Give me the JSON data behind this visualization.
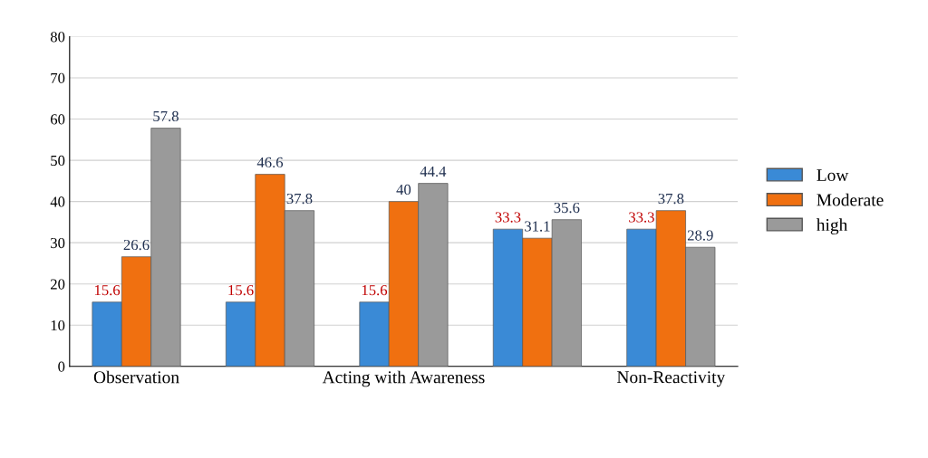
{
  "chart_data": {
    "type": "bar",
    "categories": [
      "Observation",
      null,
      "Acting with Awareness",
      null,
      "Non-Reactivity"
    ],
    "series": [
      {
        "name": "Low",
        "color": "#3a8ad6",
        "values": [
          15.6,
          15.6,
          15.6,
          33.3,
          33.3
        ]
      },
      {
        "name": "Moderate",
        "color": "#f07010",
        "values": [
          26.6,
          46.6,
          40,
          31.1,
          37.8
        ]
      },
      {
        "name": "high",
        "color": "#9a9a9a",
        "values": [
          57.8,
          37.8,
          44.4,
          35.6,
          28.9
        ]
      }
    ],
    "ylim": [
      0,
      80
    ],
    "yticks": [
      0,
      10,
      20,
      30,
      40,
      50,
      60,
      70,
      80
    ],
    "grid": "y",
    "legend": "right",
    "data_labels": true
  }
}
